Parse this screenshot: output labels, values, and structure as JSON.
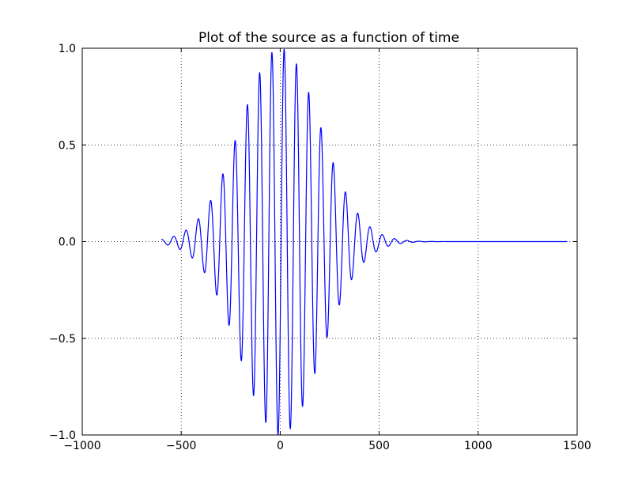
{
  "chart_data": {
    "type": "line",
    "title": "Plot of the source as a function of time",
    "xlabel": "",
    "ylabel": "",
    "xlim": [
      -1000,
      1500
    ],
    "ylim": [
      -1.0,
      1.0
    ],
    "xticks": [
      -1000,
      -500,
      0,
      500,
      1000,
      1500
    ],
    "xtick_labels": [
      "−1000",
      "−500",
      "0",
      "500",
      "1000",
      "1500"
    ],
    "yticks": [
      -1.0,
      -0.5,
      0.0,
      0.5,
      1.0
    ],
    "ytick_labels": [
      "−1.0",
      "−0.5",
      "0.0",
      "0.5",
      "1.0"
    ],
    "grid": true,
    "grid_style": "dotted",
    "legend": "none",
    "series": [
      {
        "color": "#0000ff",
        "signal": {
          "kind": "gaussian-modulated-sinusoid",
          "t_start": -600,
          "t_end": 1450,
          "center": 0,
          "period": 62,
          "envelope_sigma": 200,
          "amplitude": 1.0
        },
        "peaks": [
          {
            "t": 20,
            "v": 1.0
          },
          {
            "t": -10,
            "v": -1.0
          },
          {
            "t": -40,
            "v": 0.97
          },
          {
            "t": 50,
            "v": -0.97
          },
          {
            "t": 80,
            "v": 0.92
          },
          {
            "t": -72,
            "v": -0.92
          },
          {
            "t": -102,
            "v": 0.86
          },
          {
            "t": 112,
            "v": -0.86
          },
          {
            "t": 142,
            "v": 0.78
          },
          {
            "t": -165,
            "v": 0.69
          },
          {
            "t": 205,
            "v": 0.59
          },
          {
            "t": -240,
            "v": 0.5
          },
          {
            "t": 265,
            "v": 0.41
          },
          {
            "t": -305,
            "v": 0.33
          },
          {
            "t": 330,
            "v": 0.26
          },
          {
            "t": -365,
            "v": 0.2
          },
          {
            "t": 395,
            "v": 0.14
          },
          {
            "t": -430,
            "v": 0.1
          },
          {
            "t": -490,
            "v": 0.05
          },
          {
            "t": 515,
            "v": 0.04
          },
          {
            "t": -550,
            "v": 0.02
          }
        ]
      }
    ]
  }
}
